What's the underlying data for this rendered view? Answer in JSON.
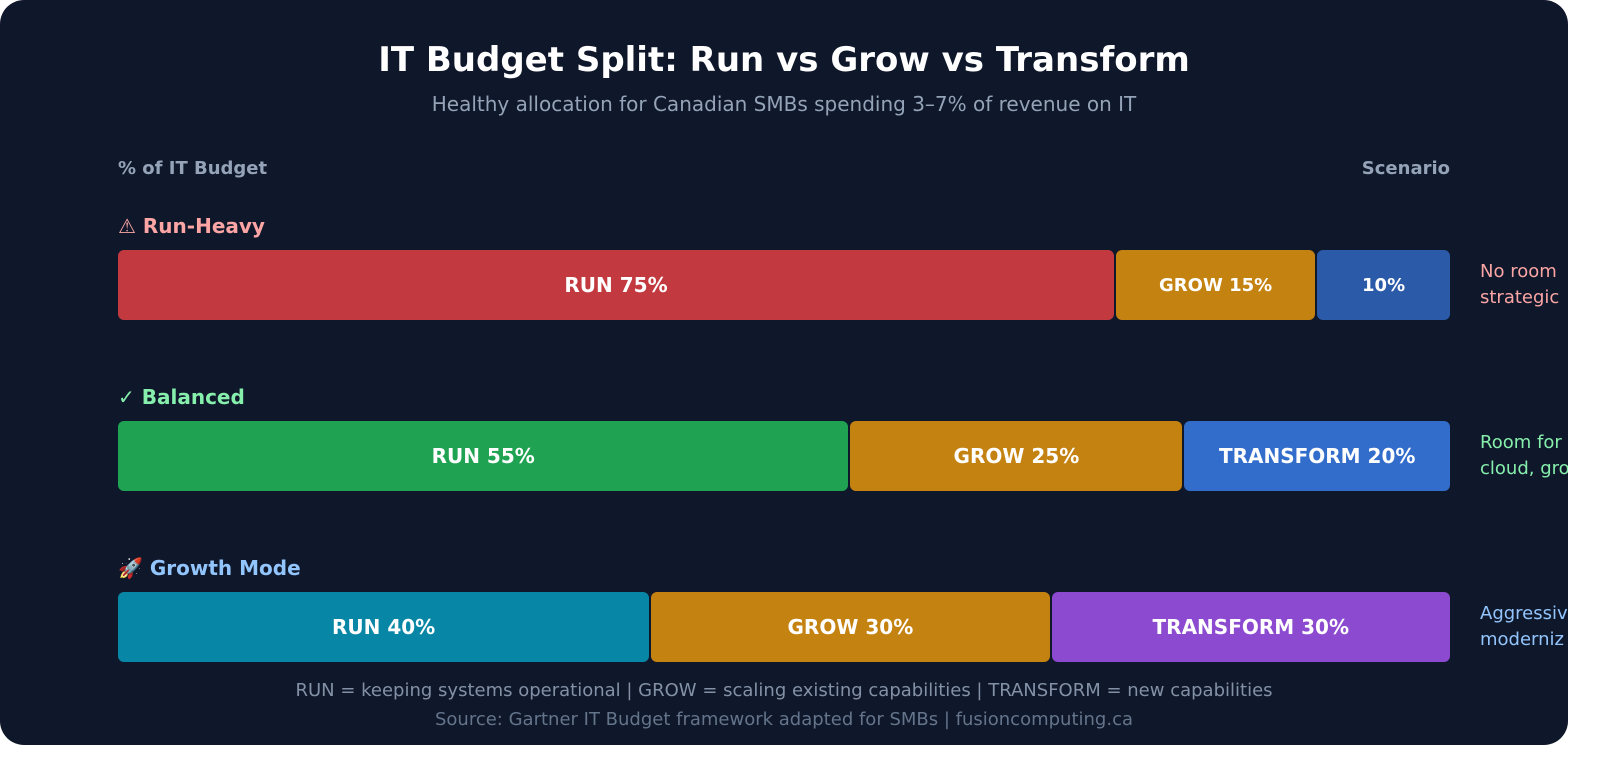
{
  "chart_data": {
    "type": "bar",
    "orientation": "horizontal-stacked",
    "title": "IT Budget Split: Run vs Grow vs Transform",
    "subtitle": "Healthy allocation for Canadian SMBs spending 3–7% of revenue on IT",
    "xlabel": "% of IT Budget",
    "ylabel": "Scenario",
    "xlim": [
      0,
      100
    ],
    "scenarios": [
      {
        "icon": "⚠",
        "name": "Run-Heavy",
        "color": "#fca5a5",
        "segments": [
          {
            "label": "RUN 75%",
            "category": "RUN",
            "value": 75,
            "color": "#c23a40"
          },
          {
            "label": "GROW 15%",
            "category": "GROW",
            "value": 15,
            "color": "#c48211"
          },
          {
            "label": "10%",
            "category": "TRANSFORM",
            "value": 10,
            "color": "#2a5aa8"
          }
        ],
        "note": [
          "No room",
          "strategic"
        ]
      },
      {
        "icon": "✓",
        "name": "Balanced",
        "color": "#86efac",
        "segments": [
          {
            "label": "RUN 55%",
            "category": "RUN",
            "value": 55,
            "color": "#1fa352"
          },
          {
            "label": "GROW 25%",
            "category": "GROW",
            "value": 25,
            "color": "#c48211"
          },
          {
            "label": "TRANSFORM 20%",
            "category": "TRANSFORM",
            "value": 20,
            "color": "#336dcc"
          }
        ],
        "note": [
          "Room for",
          "cloud, gro"
        ]
      },
      {
        "icon": "🚀",
        "name": "Growth Mode",
        "color": "#93c5fd",
        "segments": [
          {
            "label": "RUN 40%",
            "category": "RUN",
            "value": 40,
            "color": "#0886a5"
          },
          {
            "label": "GROW 30%",
            "category": "GROW",
            "value": 30,
            "color": "#c48211"
          },
          {
            "label": "TRANSFORM 30%",
            "category": "TRANSFORM",
            "value": 30,
            "color": "#8b4acf"
          }
        ],
        "note": [
          "Aggressiv",
          "moderniz"
        ]
      }
    ],
    "legend_text": "RUN = keeping systems operational | GROW = scaling existing capabilities | TRANSFORM = new capabilities",
    "source": "Source: Gartner IT Budget framework adapted for SMBs | fusioncomputing.ca"
  }
}
